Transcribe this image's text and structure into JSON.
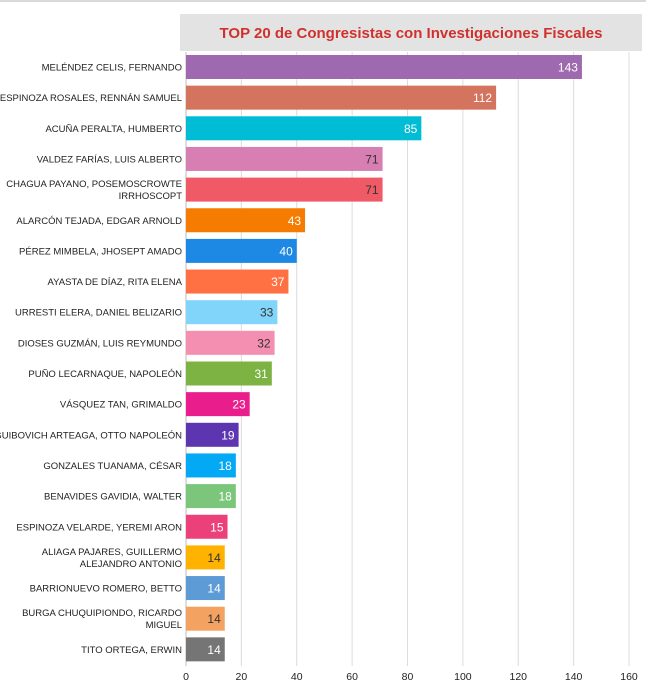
{
  "chart_data": {
    "type": "bar",
    "orientation": "horizontal",
    "title": "TOP 20 de Congresistas con Investigaciones Fiscales",
    "xlabel": "",
    "ylabel": "",
    "xlim": [
      0,
      160
    ],
    "x_ticks": [
      "0",
      "20",
      "40",
      "60",
      "80",
      "100",
      "120",
      "140",
      "160"
    ],
    "grid": true,
    "categories": [
      [
        "MELÉNDEZ CELIS, FERNANDO"
      ],
      [
        "ESPINOZA ROSALES, RENNÁN SAMUEL"
      ],
      [
        "ACUÑA PERALTA, HUMBERTO"
      ],
      [
        "VALDEZ FARÍAS, LUIS ALBERTO"
      ],
      [
        "CHAGUA PAYANO, POSEMOSCROWTE",
        "IRRHOSCOPT"
      ],
      [
        "ALARCÓN TEJADA, EDGAR ARNOLD"
      ],
      [
        "PÉREZ MIMBELA, JHOSEPT AMADO"
      ],
      [
        "AYASTA DE DÍAZ, RITA ELENA"
      ],
      [
        "URRESTI ELERA, DANIEL BELIZARIO"
      ],
      [
        "DIOSES GUZMÁN, LUIS REYMUNDO"
      ],
      [
        "PUÑO LECARNAQUE, NAPOLEÓN"
      ],
      [
        "VÁSQUEZ TAN, GRIMALDO"
      ],
      [
        "GUIBOVICH ARTEAGA, OTTO NAPOLEÓN"
      ],
      [
        "GONZALES TUANAMA, CÉSAR"
      ],
      [
        "BENAVIDES GAVIDIA, WALTER"
      ],
      [
        "ESPINOZA VELARDE, YEREMI ARON"
      ],
      [
        "ALIAGA PAJARES, GUILLERMO",
        "ALEJANDRO ANTONIO"
      ],
      [
        "BARRIONUEVO ROMERO, BETTO"
      ],
      [
        "BURGA CHUQUIPIONDO, RICARDO",
        "MIGUEL"
      ],
      [
        "TITO ORTEGA, ERWIN"
      ]
    ],
    "values": [
      143,
      112,
      85,
      71,
      71,
      43,
      40,
      37,
      33,
      32,
      31,
      23,
      19,
      18,
      18,
      15,
      14,
      14,
      14,
      14
    ],
    "colors": [
      "#9e69af",
      "#d4735e",
      "#00bcd4",
      "#d77fb3",
      "#f05a67",
      "#f57c00",
      "#1e88e5",
      "#ff7043",
      "#81d4fa",
      "#f48fb1",
      "#7cb342",
      "#e91e8c",
      "#5e35b1",
      "#03a9f4",
      "#7bc67b",
      "#ec407a",
      "#ffb300",
      "#5c9bd6",
      "#f4a261",
      "#757575"
    ],
    "label_colors": [
      "#ffffff",
      "#ffffff",
      "#ffffff",
      "#333333",
      "#333333",
      "#ffffff",
      "#ffffff",
      "#ffffff",
      "#333333",
      "#333333",
      "#ffffff",
      "#ffffff",
      "#ffffff",
      "#ffffff",
      "#ffffff",
      "#ffffff",
      "#333333",
      "#ffffff",
      "#333333",
      "#ffffff"
    ]
  }
}
